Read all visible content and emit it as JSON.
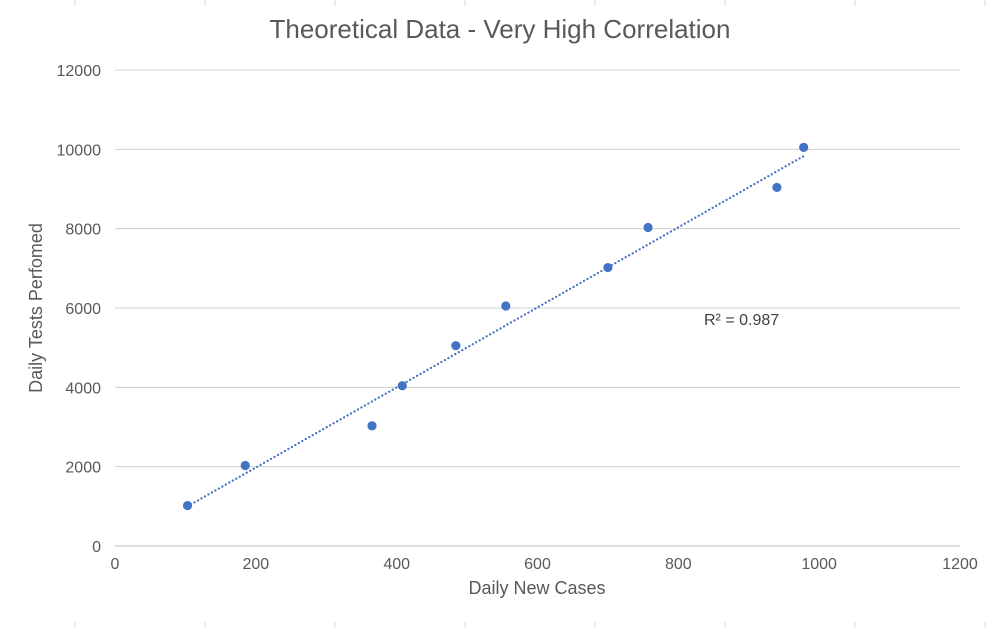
{
  "chart_data": {
    "type": "scatter",
    "title": "Theoretical Data - Very High Correlation",
    "xlabel": "Daily New Cases",
    "ylabel": "Daily Tests Perfomed",
    "xlim": [
      0,
      1200
    ],
    "ylim": [
      0,
      12000
    ],
    "x_ticks": [
      0,
      200,
      400,
      600,
      800,
      1000,
      1200
    ],
    "y_ticks": [
      0,
      2000,
      4000,
      6000,
      8000,
      10000,
      12000
    ],
    "grid": "horizontal",
    "series": [
      {
        "name": "Daily Tests Perfomed",
        "color": "#4472c4",
        "points": [
          {
            "x": 103,
            "y": 1020
          },
          {
            "x": 185,
            "y": 2030
          },
          {
            "x": 365,
            "y": 3030
          },
          {
            "x": 408,
            "y": 4040
          },
          {
            "x": 484,
            "y": 5050
          },
          {
            "x": 555,
            "y": 6050
          },
          {
            "x": 700,
            "y": 7020
          },
          {
            "x": 757,
            "y": 8030
          },
          {
            "x": 940,
            "y": 9040
          },
          {
            "x": 978,
            "y": 10050
          }
        ]
      }
    ],
    "trendline": {
      "type": "linear",
      "style": "dotted",
      "color": "#4472c4",
      "from": {
        "x": 103,
        "y": 1000
      },
      "to": {
        "x": 978,
        "y": 9830
      },
      "r_squared_label": "R² = 0.987"
    }
  }
}
